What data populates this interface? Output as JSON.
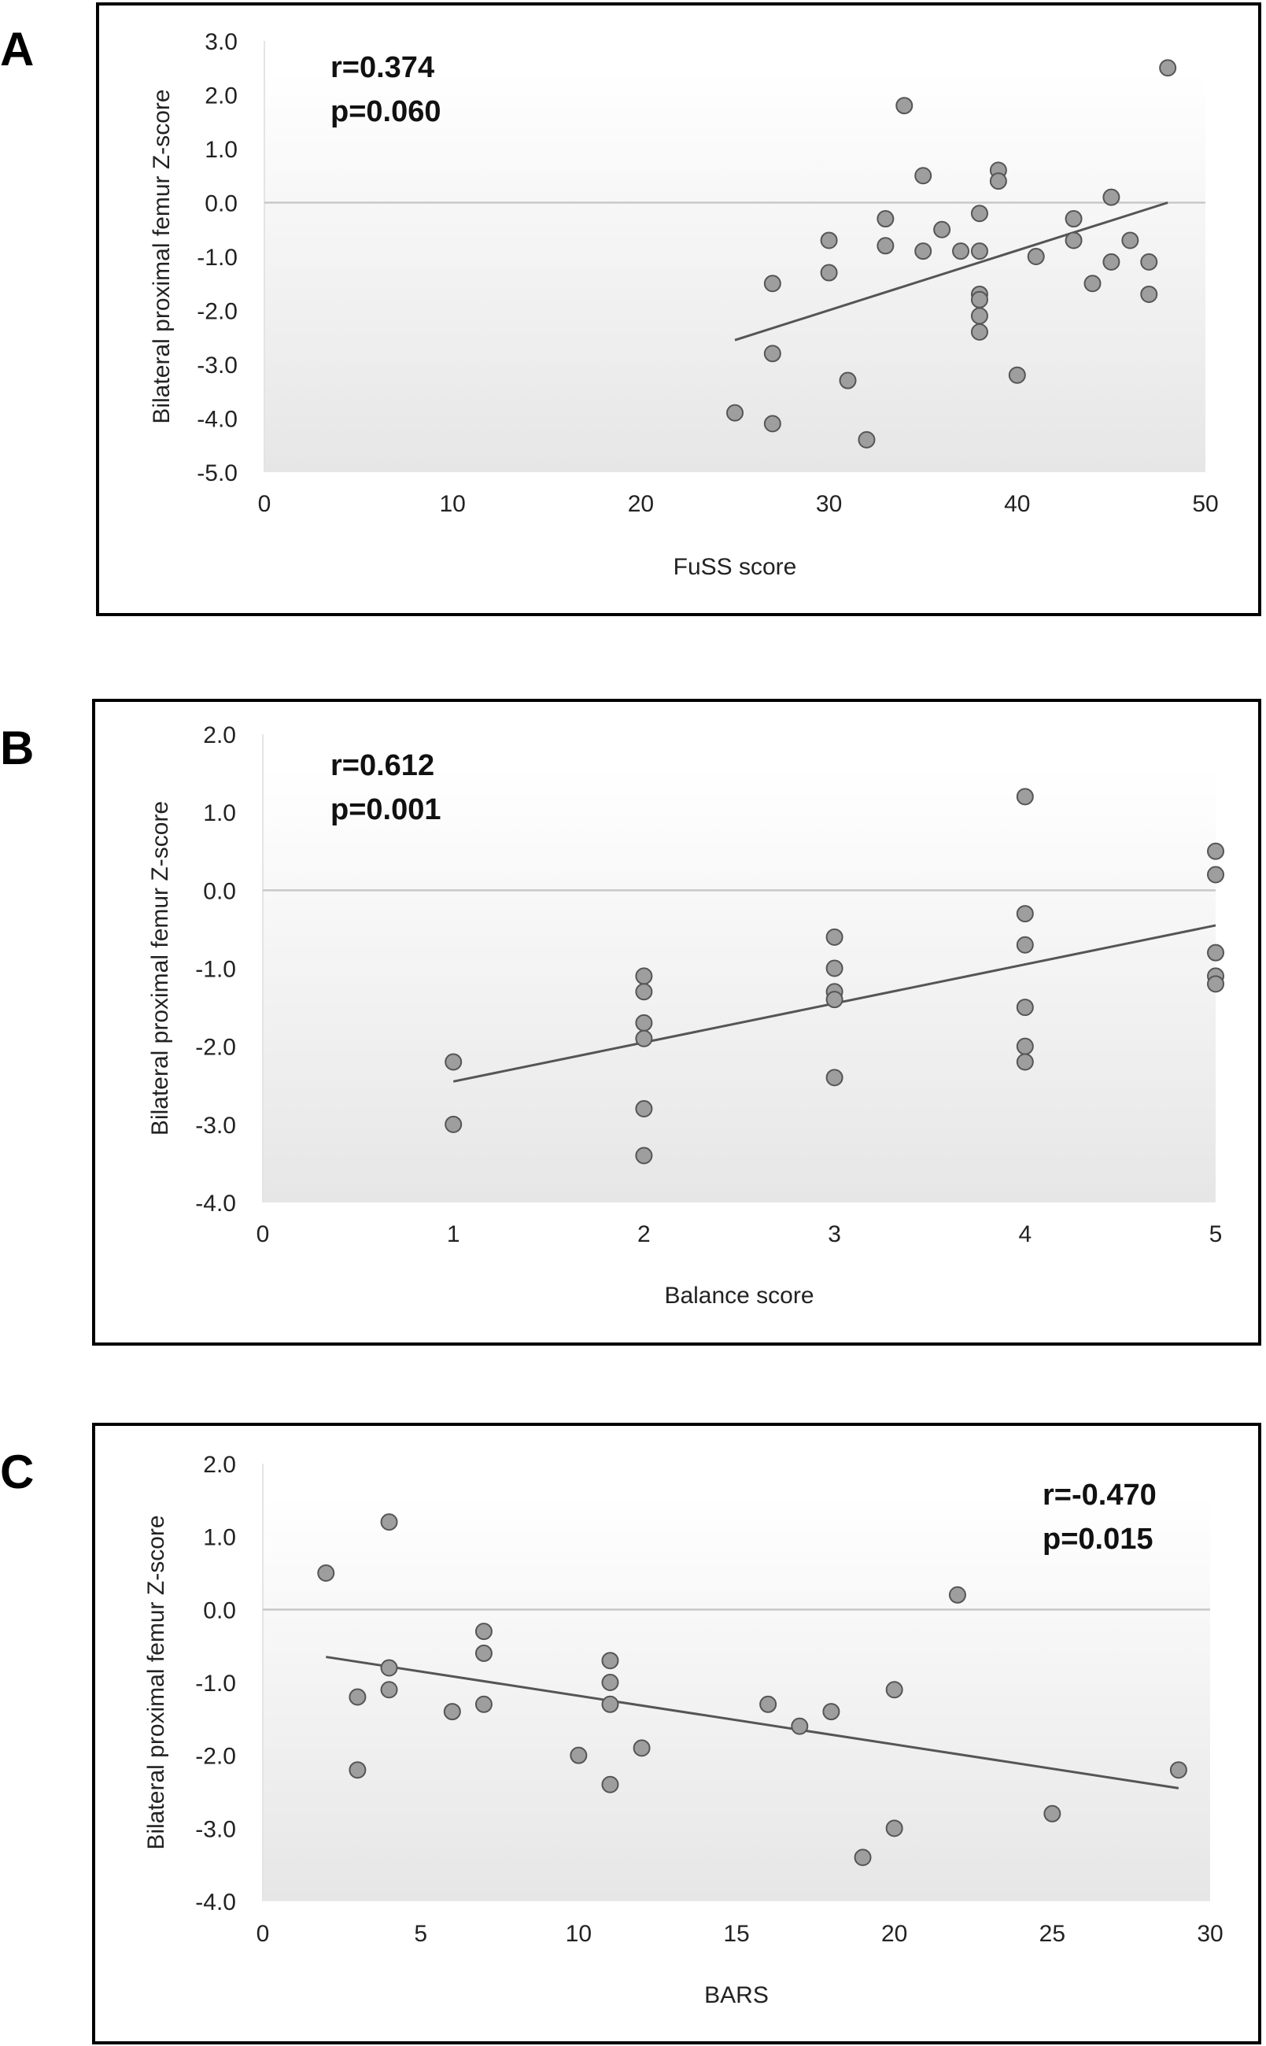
{
  "chart_data": [
    {
      "type": "scatter",
      "panel": "A",
      "xlabel": "FuSS score",
      "ylabel": "Bilateral proximal femur Z-score",
      "xlim": [
        0,
        50
      ],
      "ylim": [
        -5.0,
        3.0
      ],
      "xticks": [
        "0",
        "10",
        "20",
        "30",
        "40",
        "50"
      ],
      "yticks": [
        "3.0",
        "2.0",
        "1.0",
        "0.0",
        "-1.0",
        "-2.0",
        "-3.0",
        "-4.0",
        "-5.0"
      ],
      "stats": [
        "r=0.374",
        "p=0.060"
      ],
      "points": [
        [
          25,
          -3.9
        ],
        [
          27,
          -4.1
        ],
        [
          27,
          -2.8
        ],
        [
          27,
          -1.5
        ],
        [
          30,
          -0.7
        ],
        [
          30,
          -1.3
        ],
        [
          31,
          -3.3
        ],
        [
          32,
          -4.4
        ],
        [
          33,
          -0.3
        ],
        [
          33,
          -0.8
        ],
        [
          34,
          1.8
        ],
        [
          35,
          0.5
        ],
        [
          35,
          -0.9
        ],
        [
          36,
          -0.5
        ],
        [
          37,
          -0.9
        ],
        [
          38,
          -0.2
        ],
        [
          38,
          -0.9
        ],
        [
          38,
          -1.7
        ],
        [
          38,
          -1.8
        ],
        [
          38,
          -2.1
        ],
        [
          38,
          -2.4
        ],
        [
          39,
          0.6
        ],
        [
          39,
          0.4
        ],
        [
          40,
          -3.2
        ],
        [
          41,
          -1.0
        ],
        [
          43,
          -0.3
        ],
        [
          43,
          -0.7
        ],
        [
          44,
          -1.5
        ],
        [
          45,
          0.1
        ],
        [
          45,
          -1.1
        ],
        [
          46,
          -0.7
        ],
        [
          47,
          -1.1
        ],
        [
          47,
          -1.7
        ],
        [
          48,
          2.5
        ]
      ],
      "trendline": [
        [
          25,
          -2.55
        ],
        [
          48,
          0.0
        ]
      ]
    },
    {
      "type": "scatter",
      "panel": "B",
      "xlabel": "Balance score",
      "ylabel": "Bilateral proximal femur Z-score",
      "xlim": [
        0,
        5
      ],
      "ylim": [
        -4.0,
        2.0
      ],
      "xticks": [
        "0",
        "1",
        "2",
        "3",
        "4",
        "5"
      ],
      "yticks": [
        "2.0",
        "1.0",
        "0.0",
        "-1.0",
        "-2.0",
        "-3.0",
        "-4.0"
      ],
      "stats": [
        "r=0.612",
        "p=0.001"
      ],
      "points": [
        [
          1,
          -2.2
        ],
        [
          1,
          -3.0
        ],
        [
          2,
          -1.1
        ],
        [
          2,
          -1.3
        ],
        [
          2,
          -1.7
        ],
        [
          2,
          -1.9
        ],
        [
          2,
          -2.8
        ],
        [
          2,
          -3.4
        ],
        [
          3,
          -0.6
        ],
        [
          3,
          -1.0
        ],
        [
          3,
          -1.3
        ],
        [
          3,
          -1.4
        ],
        [
          3,
          -2.4
        ],
        [
          4,
          1.2
        ],
        [
          4,
          -0.3
        ],
        [
          4,
          -0.7
        ],
        [
          4,
          -1.5
        ],
        [
          4,
          -2.0
        ],
        [
          4,
          -2.2
        ],
        [
          5,
          0.5
        ],
        [
          5,
          0.2
        ],
        [
          5,
          -0.8
        ],
        [
          5,
          -1.1
        ],
        [
          5,
          -1.2
        ]
      ],
      "trendline": [
        [
          1,
          -2.45
        ],
        [
          5,
          -0.45
        ]
      ]
    },
    {
      "type": "scatter",
      "panel": "C",
      "xlabel": "BARS",
      "ylabel": "Bilateral proximal femur Z-score",
      "xlim": [
        0,
        30
      ],
      "ylim": [
        -4.0,
        2.0
      ],
      "xticks": [
        "0",
        "5",
        "10",
        "15",
        "20",
        "25",
        "30"
      ],
      "yticks": [
        "2.0",
        "1.0",
        "0.0",
        "-1.0",
        "-2.0",
        "-3.0",
        "-4.0"
      ],
      "stats": [
        "r=-0.470",
        "p=0.015"
      ],
      "points": [
        [
          2,
          0.5
        ],
        [
          3,
          -1.2
        ],
        [
          3,
          -2.2
        ],
        [
          4,
          1.2
        ],
        [
          4,
          -0.8
        ],
        [
          4,
          -1.1
        ],
        [
          6,
          -1.4
        ],
        [
          7,
          -0.3
        ],
        [
          7,
          -0.6
        ],
        [
          7,
          -1.3
        ],
        [
          10,
          -2.0
        ],
        [
          11,
          -0.7
        ],
        [
          11,
          -1.0
        ],
        [
          11,
          -1.3
        ],
        [
          11,
          -2.4
        ],
        [
          12,
          -1.9
        ],
        [
          16,
          -1.3
        ],
        [
          17,
          -1.6
        ],
        [
          18,
          -1.4
        ],
        [
          19,
          -3.4
        ],
        [
          20,
          -1.1
        ],
        [
          20,
          -3.0
        ],
        [
          22,
          0.2
        ],
        [
          25,
          -2.8
        ],
        [
          29,
          -2.2
        ]
      ],
      "trendline": [
        [
          2,
          -0.65
        ],
        [
          29,
          -2.45
        ]
      ]
    }
  ]
}
